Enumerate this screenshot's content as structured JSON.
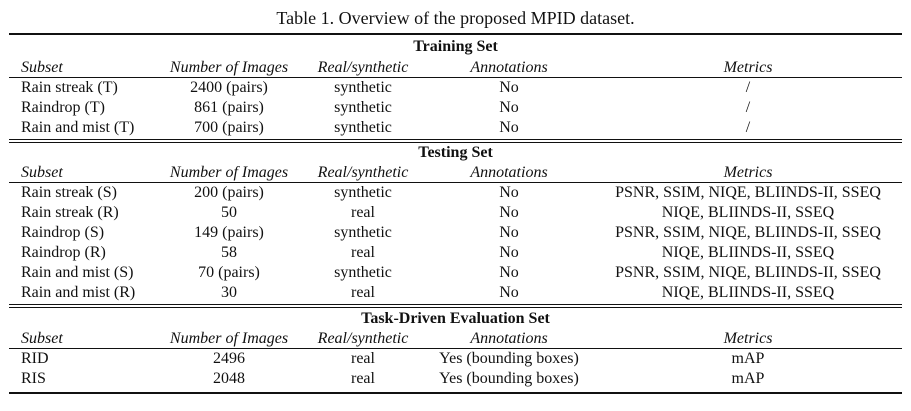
{
  "caption": "Table 1. Overview of the proposed MPID dataset.",
  "columns": [
    "Subset",
    "Number of Images",
    "Real/synthetic",
    "Annotations",
    "Metrics"
  ],
  "sections": [
    {
      "title": "Training Set",
      "rows": [
        [
          "Rain streak (T)",
          "2400 (pairs)",
          "synthetic",
          "No",
          "/"
        ],
        [
          "Raindrop (T)",
          "861 (pairs)",
          "synthetic",
          "No",
          "/"
        ],
        [
          "Rain and mist (T)",
          "700 (pairs)",
          "synthetic",
          "No",
          "/"
        ]
      ]
    },
    {
      "title": "Testing Set",
      "rows": [
        [
          "Rain streak (S)",
          "200 (pairs)",
          "synthetic",
          "No",
          "PSNR, SSIM, NIQE, BLIINDS-II, SSEQ"
        ],
        [
          "Rain streak (R)",
          "50",
          "real",
          "No",
          "NIQE, BLIINDS-II, SSEQ"
        ],
        [
          "Raindrop (S)",
          "149 (pairs)",
          "synthetic",
          "No",
          "PSNR, SSIM, NIQE, BLIINDS-II, SSEQ"
        ],
        [
          "Raindrop (R)",
          "58",
          "real",
          "No",
          "NIQE, BLIINDS-II, SSEQ"
        ],
        [
          "Rain and mist (S)",
          "70 (pairs)",
          "synthetic",
          "No",
          "PSNR, SSIM, NIQE, BLIINDS-II, SSEQ"
        ],
        [
          "Rain and mist (R)",
          "30",
          "real",
          "No",
          "NIQE, BLIINDS-II, SSEQ"
        ]
      ]
    },
    {
      "title": "Task-Driven Evaluation Set",
      "rows": [
        [
          "RID",
          "2496",
          "real",
          "Yes (bounding boxes)",
          "mAP"
        ],
        [
          "RIS",
          "2048",
          "real",
          "Yes (bounding boxes)",
          "mAP"
        ]
      ]
    }
  ]
}
